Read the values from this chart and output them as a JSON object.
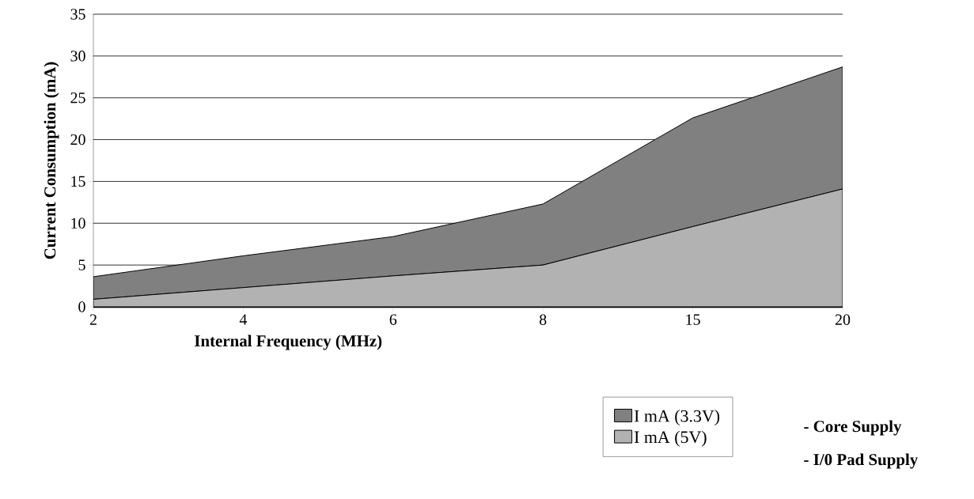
{
  "chart_data": {
    "type": "area",
    "stacked": true,
    "xlabel": "Internal Frequency (MHz)",
    "ylabel": "Current Consumption (mA)",
    "categories": [
      "2",
      "4",
      "6",
      "8",
      "15",
      "20"
    ],
    "series": [
      {
        "name": "I mA (5V)",
        "color": "#b2b2b2",
        "values": [
          0.9,
          2.3,
          3.7,
          5.0,
          9.6,
          14.1
        ]
      },
      {
        "name": "I mA (3.3V)",
        "color": "#808080",
        "values": [
          2.7,
          3.8,
          4.7,
          7.3,
          13.0,
          14.6
        ]
      }
    ],
    "ylim": [
      0,
      35
    ],
    "yticks": [
      0,
      5,
      10,
      15,
      20,
      25,
      30,
      35
    ],
    "grid": "y",
    "legend": "bottom right",
    "annotations": [
      "- Core Supply",
      "- I/0 Pad Supply"
    ]
  }
}
